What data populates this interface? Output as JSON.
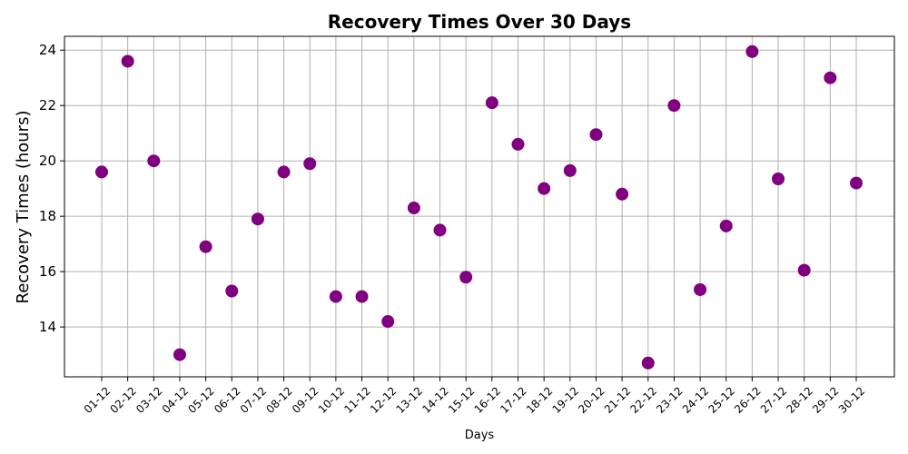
{
  "chart_data": {
    "type": "scatter",
    "title": "Recovery Times Over 30 Days",
    "xlabel": "Days",
    "ylabel": "Recovery Times (hours)",
    "categories": [
      "01-12",
      "02-12",
      "03-12",
      "04-12",
      "05-12",
      "06-12",
      "07-12",
      "08-12",
      "09-12",
      "10-12",
      "11-12",
      "12-12",
      "13-12",
      "14-12",
      "15-12",
      "16-12",
      "17-12",
      "18-12",
      "19-12",
      "20-12",
      "21-12",
      "22-12",
      "23-12",
      "24-12",
      "25-12",
      "26-12",
      "27-12",
      "28-12",
      "29-12",
      "30-12"
    ],
    "values": [
      19.6,
      23.6,
      20.0,
      13.0,
      16.9,
      15.3,
      17.9,
      19.6,
      19.9,
      15.1,
      15.1,
      14.2,
      18.3,
      17.5,
      15.8,
      22.1,
      20.6,
      19.0,
      19.65,
      20.95,
      18.8,
      12.7,
      22.0,
      15.35,
      17.65,
      23.95,
      19.35,
      16.05,
      23.0,
      19.2
    ],
    "yticks": [
      14,
      16,
      18,
      20,
      22,
      24
    ],
    "ylim": [
      12.2,
      24.5
    ],
    "grid": true,
    "marker_color": "#800080"
  }
}
